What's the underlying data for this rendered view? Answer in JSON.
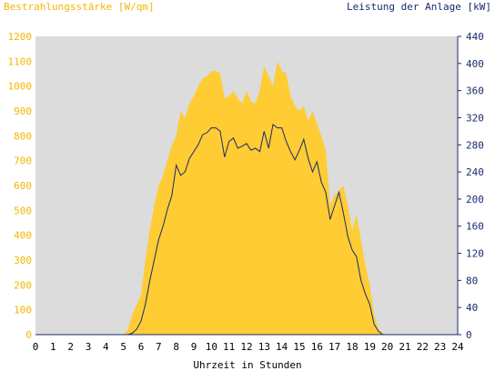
{
  "chart_data": {
    "type": "area",
    "y1label": "Bestrahlungsstärke [W/qm]",
    "y2label": "Leistung der Anlage [kW]",
    "xlabel": "Uhrzeit in Stunden",
    "xlim": [
      0,
      24
    ],
    "y1lim": [
      0,
      1200
    ],
    "y2lim": [
      0,
      440
    ],
    "xticks": [
      "0",
      "1",
      "2",
      "3",
      "4",
      "5",
      "6",
      "7",
      "8",
      "9",
      "10",
      "11",
      "12",
      "13",
      "14",
      "15",
      "16",
      "17",
      "18",
      "19",
      "20",
      "21",
      "22",
      "23",
      "24"
    ],
    "y1ticks": [
      "0",
      "100",
      "200",
      "300",
      "400",
      "500",
      "600",
      "700",
      "800",
      "900",
      "1000",
      "1100",
      "1200"
    ],
    "y2ticks": [
      "0",
      "40",
      "80",
      "120",
      "160",
      "200",
      "240",
      "280",
      "320",
      "360",
      "400",
      "440"
    ],
    "colors": {
      "plot_background": "#dcdcdc",
      "irradiance_fill": "#ffcc33",
      "power_line": "#1a2a6c",
      "left_axis_text": "#f2b705",
      "right_axis_text": "#1a2a6c",
      "grid": "#ffffff"
    },
    "grid": true,
    "series": [
      {
        "name": "Bestrahlungsstärke [W/qm]",
        "axis": "left",
        "style": "area",
        "x": [
          0,
          5.0,
          5.25,
          5.5,
          5.75,
          6.0,
          6.25,
          6.5,
          6.75,
          7.0,
          7.25,
          7.5,
          7.75,
          8.0,
          8.25,
          8.5,
          8.75,
          9.0,
          9.25,
          9.5,
          9.75,
          10.0,
          10.25,
          10.5,
          10.75,
          11.0,
          11.25,
          11.5,
          11.75,
          12.0,
          12.25,
          12.5,
          12.75,
          13.0,
          13.25,
          13.5,
          13.75,
          14.0,
          14.25,
          14.5,
          14.75,
          15.0,
          15.25,
          15.5,
          15.75,
          16.0,
          16.25,
          16.5,
          16.75,
          17.0,
          17.25,
          17.5,
          17.75,
          18.0,
          18.25,
          18.5,
          18.75,
          19.0,
          19.25,
          19.5,
          19.75,
          20.0,
          24
        ],
        "values": [
          0,
          0,
          20,
          80,
          120,
          160,
          300,
          420,
          520,
          600,
          640,
          700,
          760,
          800,
          900,
          870,
          930,
          960,
          1000,
          1030,
          1040,
          1060,
          1060,
          1050,
          950,
          960,
          980,
          950,
          930,
          980,
          940,
          930,
          980,
          1080,
          1040,
          1000,
          1100,
          1060,
          1050,
          960,
          920,
          900,
          920,
          860,
          900,
          850,
          800,
          740,
          520,
          560,
          580,
          600,
          520,
          420,
          480,
          380,
          280,
          200,
          80,
          20,
          5,
          0,
          0
        ]
      },
      {
        "name": "Leistung der Anlage [kW]",
        "axis": "right",
        "style": "line",
        "x": [
          0,
          5.0,
          5.25,
          5.5,
          5.75,
          6.0,
          6.25,
          6.5,
          6.75,
          7.0,
          7.25,
          7.5,
          7.75,
          8.0,
          8.25,
          8.5,
          8.75,
          9.0,
          9.25,
          9.5,
          9.75,
          10.0,
          10.25,
          10.5,
          10.75,
          11.0,
          11.25,
          11.5,
          11.75,
          12.0,
          12.25,
          12.5,
          12.75,
          13.0,
          13.25,
          13.5,
          13.75,
          14.0,
          14.25,
          14.5,
          14.75,
          15.0,
          15.25,
          15.5,
          15.75,
          16.0,
          16.25,
          16.5,
          16.75,
          17.0,
          17.25,
          17.5,
          17.75,
          18.0,
          18.25,
          18.5,
          18.75,
          19.0,
          19.25,
          19.5,
          19.75,
          20.0,
          24
        ],
        "values": [
          0,
          0,
          0,
          2,
          8,
          20,
          45,
          80,
          110,
          140,
          160,
          185,
          205,
          250,
          235,
          240,
          260,
          270,
          280,
          295,
          298,
          305,
          305,
          300,
          262,
          285,
          290,
          275,
          278,
          282,
          272,
          275,
          270,
          300,
          275,
          310,
          305,
          305,
          285,
          270,
          258,
          272,
          288,
          260,
          240,
          255,
          225,
          210,
          170,
          190,
          210,
          180,
          145,
          125,
          115,
          80,
          60,
          45,
          15,
          5,
          0,
          0,
          0
        ]
      }
    ]
  }
}
